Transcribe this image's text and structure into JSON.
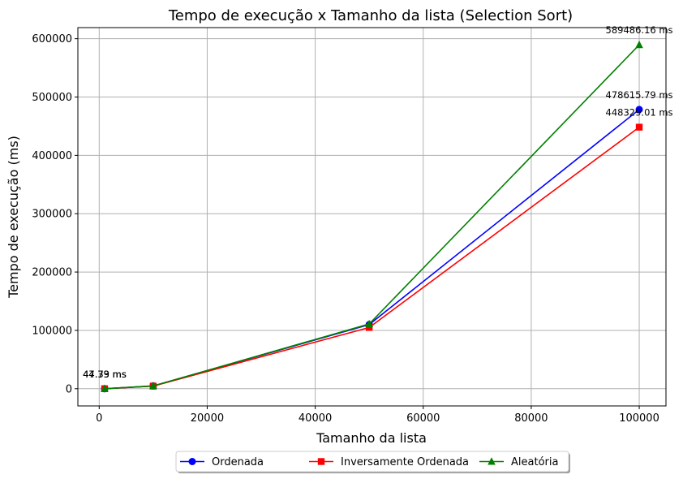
{
  "chart_data": {
    "type": "line",
    "title": "Tempo de execução x Tamanho da lista (Selection Sort)",
    "xlabel": "Tamanho da lista",
    "ylabel": "Tempo de execução (ms)",
    "xlim": [
      -3950,
      104950
    ],
    "ylim": [
      -29500,
      619000
    ],
    "xticks": [
      0,
      20000,
      40000,
      60000,
      80000,
      100000
    ],
    "yticks": [
      0,
      100000,
      200000,
      300000,
      400000,
      500000,
      600000
    ],
    "grid": true,
    "legend_position": "bottom-center",
    "series": [
      {
        "name": "Ordenada",
        "color": "#0000ff",
        "marker": "circle",
        "x": [
          1000,
          10000,
          50000,
          100000
        ],
        "y": [
          47.79,
          4700,
          110000,
          478615.79
        ],
        "labels": [
          "47.79 ms",
          "",
          "",
          "478615.79 ms"
        ]
      },
      {
        "name": "Inversamente Ordenada",
        "color": "#ff0000",
        "marker": "square",
        "x": [
          1000,
          10000,
          50000,
          100000
        ],
        "y": [
          44.33,
          4500,
          105000,
          448329.01
        ],
        "labels": [
          "44.33 ms",
          "",
          "",
          "448329.01 ms"
        ]
      },
      {
        "name": "Aleatória",
        "color": "#008000",
        "marker": "triangle",
        "x": [
          1000,
          10000,
          50000,
          100000
        ],
        "y": [
          44.79,
          4800,
          111000,
          589486.16
        ],
        "labels": [
          "44.79 ms",
          "",
          "",
          "589486.16 ms"
        ]
      }
    ]
  }
}
